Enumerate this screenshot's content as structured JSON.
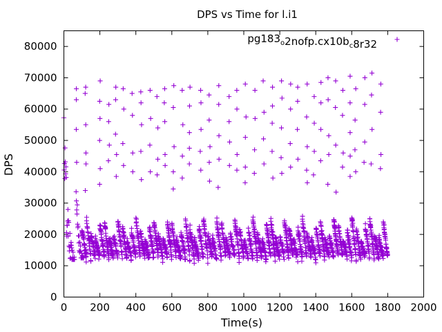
{
  "chart_data": {
    "type": "scatter",
    "title": "DPS vs Time for l.i1",
    "xlabel": "Time(s)",
    "ylabel": "DPS",
    "xlim": [
      0,
      2000
    ],
    "ylim": [
      0,
      85000
    ],
    "x_ticks": [
      0,
      200,
      400,
      600,
      800,
      1000,
      1200,
      1400,
      1600,
      1800,
      2000
    ],
    "y_ticks": [
      0,
      10000,
      20000,
      30000,
      40000,
      50000,
      60000,
      70000,
      80000
    ],
    "x_tick_labels": [
      "0",
      "200",
      "400",
      "600",
      "800",
      "1000",
      "1200",
      "1400",
      "1600",
      "1800",
      "2000"
    ],
    "y_tick_labels": [
      "0",
      "10000",
      "20000",
      "30000",
      "40000",
      "50000",
      "60000",
      "70000",
      "80000"
    ],
    "grid": false,
    "legend_position": "top-right",
    "marker": "+",
    "series": [
      {
        "name": "pg183_o2nofp.cx10b_c8r32",
        "legend_parts": [
          {
            "text": "pg183",
            "sub": false
          },
          {
            "text": "o",
            "sub": true
          },
          {
            "text": "2nofp.cx10b",
            "sub": false
          },
          {
            "text": "c",
            "sub": true
          },
          {
            "text": "8r32",
            "sub": false
          }
        ],
        "color": "#9400d3",
        "time_range": [
          0,
          1800
        ],
        "sawtooth_period_s": 25,
        "sawtooth_peak_dps": [
          18000,
          25000
        ],
        "sawtooth_trough_dps": [
          11500,
          13500
        ],
        "startup_peak_dps": [
          55000,
          35000
        ],
        "upper_band_dps": [
          33500,
          72000
        ],
        "upper_band_columns_time": [
          70,
          120,
          200,
          250,
          290,
          330,
          380,
          430,
          480,
          520,
          560,
          610,
          660,
          700,
          760,
          810,
          860,
          920,
          960,
          1010,
          1060,
          1110,
          1160,
          1210,
          1260,
          1300,
          1350,
          1390,
          1430,
          1470,
          1510,
          1550,
          1590,
          1620,
          1670,
          1710,
          1760
        ],
        "upper_band_values": [
          [
            66500,
            63000,
            53500,
            43000
          ],
          [
            67000,
            65000,
            55000,
            46000,
            42500,
            34000
          ],
          [
            69000,
            62500,
            57000,
            50000,
            41000,
            36000
          ],
          [
            61500,
            56000,
            48500,
            43500
          ],
          [
            67000,
            63000,
            52000,
            45500,
            38500
          ],
          [
            66500,
            60000,
            49000,
            42000
          ],
          [
            65000,
            58000,
            46000,
            40000
          ],
          [
            65500,
            62000,
            55000,
            46500,
            37500
          ],
          [
            66000,
            57000,
            48500,
            40000
          ],
          [
            64000,
            54000,
            44000,
            39000
          ],
          [
            66500,
            62000,
            56000,
            45500,
            42000
          ],
          [
            67500,
            60500,
            48000,
            40000,
            34500
          ],
          [
            66000,
            55000,
            45000,
            38000
          ],
          [
            67000,
            61000,
            52500,
            47500,
            42500
          ],
          [
            66000,
            62000,
            53500,
            46500,
            40500
          ],
          [
            64500,
            56500,
            48000,
            43000,
            37000
          ],
          [
            67500,
            61500,
            51500,
            44000,
            35000
          ],
          [
            64000,
            56000,
            49500,
            42000
          ],
          [
            66000,
            60000,
            45500,
            40500
          ],
          [
            68000,
            57500,
            51000,
            41500,
            36500
          ],
          [
            66000,
            57000,
            47000,
            39500
          ],
          [
            69000,
            59000,
            50500,
            42500
          ],
          [
            67000,
            61000,
            55500,
            46500,
            38000
          ],
          [
            69000,
            63500,
            54000,
            44500,
            39500
          ],
          [
            68000,
            60000,
            49000,
            41500
          ],
          [
            67000,
            62500,
            53500,
            44000
          ],
          [
            68000,
            57500,
            48000,
            40500,
            36500
          ],
          [
            64000,
            55500,
            46500,
            39000
          ],
          [
            68500,
            62000,
            53500,
            43500
          ],
          [
            70000,
            63000,
            51500,
            45500,
            36000
          ],
          [
            69000,
            60500,
            48500,
            33500
          ],
          [
            66000,
            58000,
            46000,
            41500
          ],
          [
            70500,
            62000,
            52500,
            45000,
            38500
          ],
          [
            66500,
            56500,
            47000,
            40000
          ],
          [
            70000,
            61500,
            49500,
            43000
          ],
          [
            71500,
            64500,
            53500,
            42500
          ],
          [
            68000,
            59000,
            45500,
            41000
          ]
        ]
      }
    ]
  }
}
